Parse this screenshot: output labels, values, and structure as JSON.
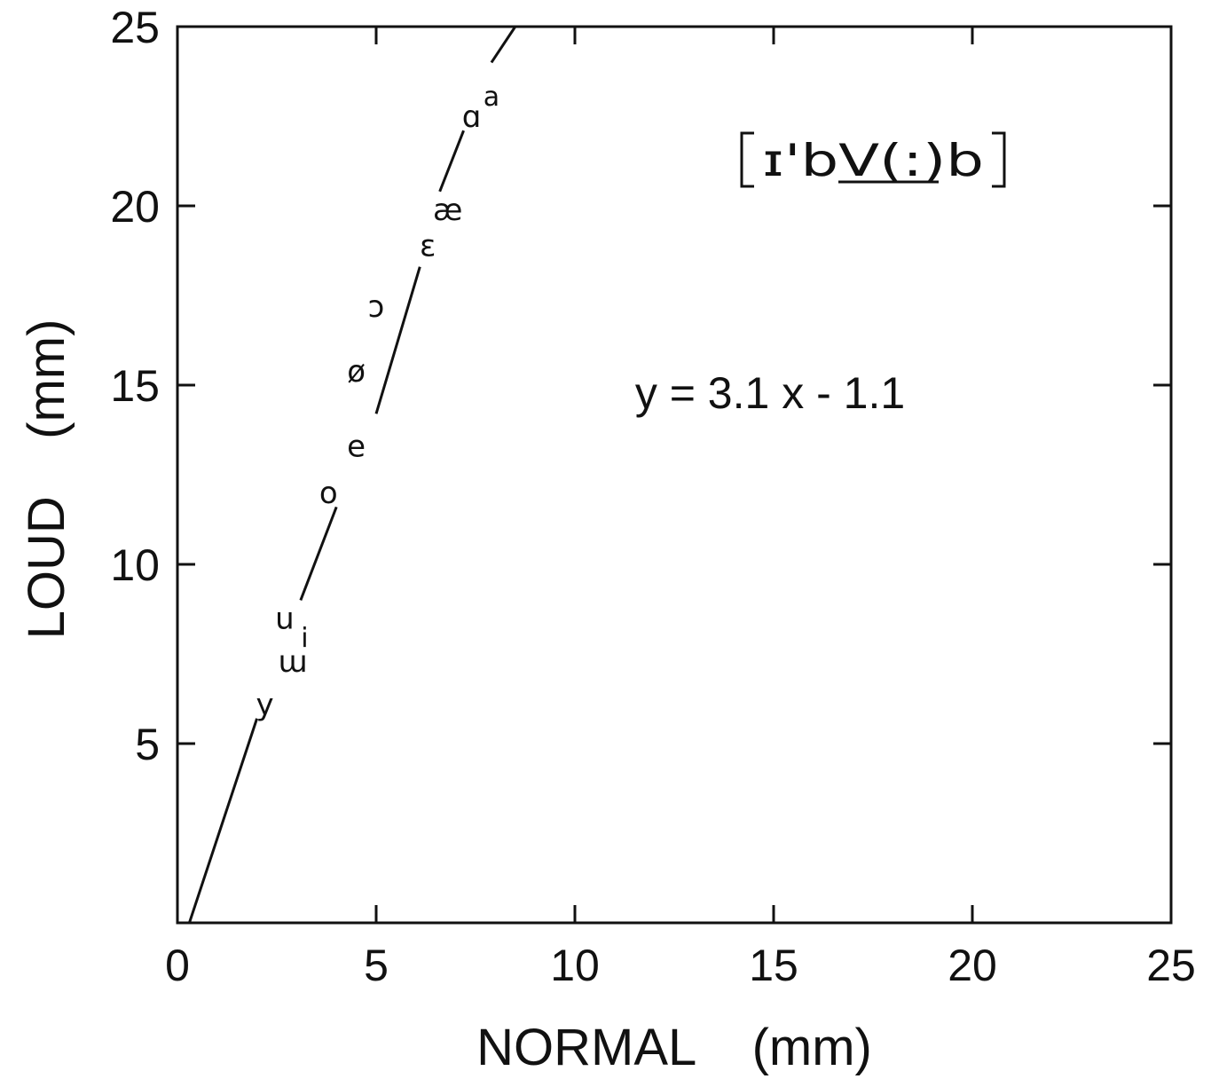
{
  "chart_data": {
    "type": "scatter",
    "title": "",
    "xlabel": "NORMAL    (mm)",
    "ylabel": "LOUD    (mm)",
    "xlim": [
      0,
      25
    ],
    "ylim": [
      0,
      25
    ],
    "xticks": [
      "0",
      "5",
      "10",
      "15",
      "20",
      "25"
    ],
    "yticks": [
      "5",
      "10",
      "15",
      "20",
      "25"
    ],
    "grid": false,
    "legend": "none",
    "annotations": {
      "equation": "y = 3.1 x - 1.1",
      "transcription": "[ɪ'bV(:)b]"
    },
    "fit_line": {
      "slope": 3.1,
      "intercept": -1.1,
      "segments": [
        [
          0.3,
          0.0,
          2.0,
          5.7
        ],
        [
          3.1,
          9.0,
          4.0,
          11.6
        ],
        [
          5.0,
          14.2,
          6.1,
          18.3
        ],
        [
          6.6,
          20.4,
          7.2,
          22.1
        ],
        [
          7.9,
          24.0,
          8.5,
          25.0
        ]
      ]
    },
    "points": [
      {
        "label": "y",
        "x": 2.2,
        "y": 6.1
      },
      {
        "label": "ɯ",
        "x": 2.9,
        "y": 7.3
      },
      {
        "label": "u",
        "x": 2.7,
        "y": 8.5
      },
      {
        "label": "i",
        "x": 3.2,
        "y": 8.0
      },
      {
        "label": "o",
        "x": 3.8,
        "y": 12.0
      },
      {
        "label": "e",
        "x": 4.5,
        "y": 13.3
      },
      {
        "label": "ø",
        "x": 4.5,
        "y": 15.4
      },
      {
        "label": "ɔ",
        "x": 5.0,
        "y": 17.2
      },
      {
        "label": "ɛ",
        "x": 6.3,
        "y": 18.9
      },
      {
        "label": "æ",
        "x": 6.8,
        "y": 19.9
      },
      {
        "label": "ɑ",
        "x": 7.4,
        "y": 22.5
      },
      {
        "label": "a",
        "x": 7.9,
        "y": 23.1
      }
    ]
  }
}
